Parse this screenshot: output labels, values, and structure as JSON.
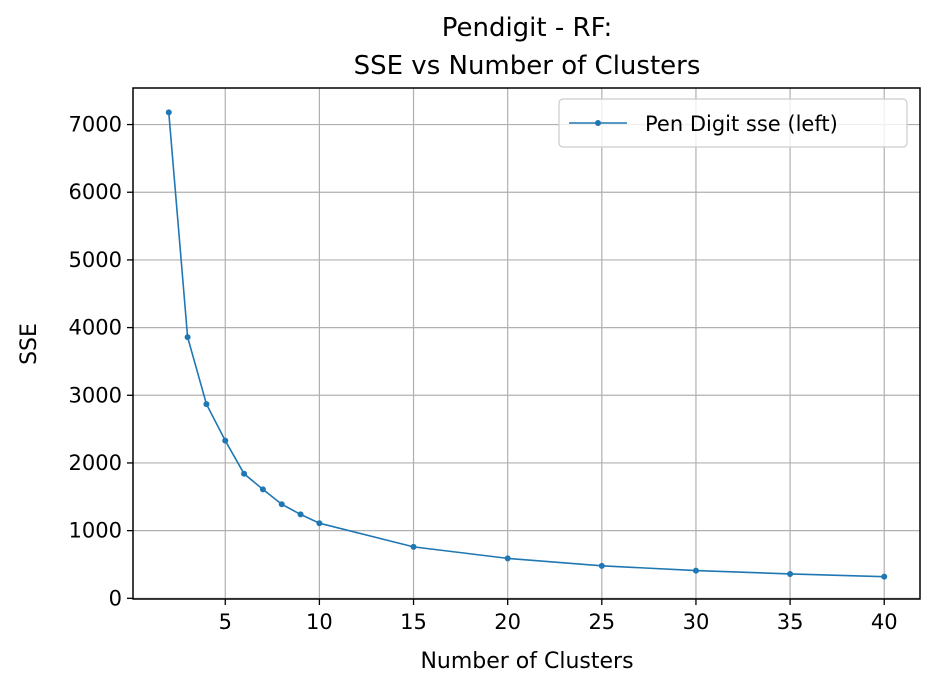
{
  "chart_data": {
    "type": "line",
    "title_line1": "Pendigit - RF:",
    "title_line2": "SSE vs Number of Clusters",
    "xlabel": "Number of Clusters",
    "ylabel": "SSE",
    "xlim": [
      0.1,
      41.9
    ],
    "ylim": [
      -10,
      7540
    ],
    "xticks": [
      5,
      10,
      15,
      20,
      25,
      30,
      35,
      40
    ],
    "yticks": [
      0,
      1000,
      2000,
      3000,
      4000,
      5000,
      6000,
      7000
    ],
    "grid": true,
    "legend_position": "top-right",
    "series": [
      {
        "name": "Pen Digit sse (left)",
        "color": "#1f77b4",
        "x": [
          2,
          3,
          4,
          5,
          6,
          7,
          8,
          9,
          10,
          15,
          20,
          25,
          30,
          35,
          40
        ],
        "y": [
          7180,
          3860,
          2870,
          2330,
          1840,
          1610,
          1390,
          1240,
          1110,
          760,
          590,
          480,
          410,
          360,
          320
        ]
      }
    ]
  }
}
